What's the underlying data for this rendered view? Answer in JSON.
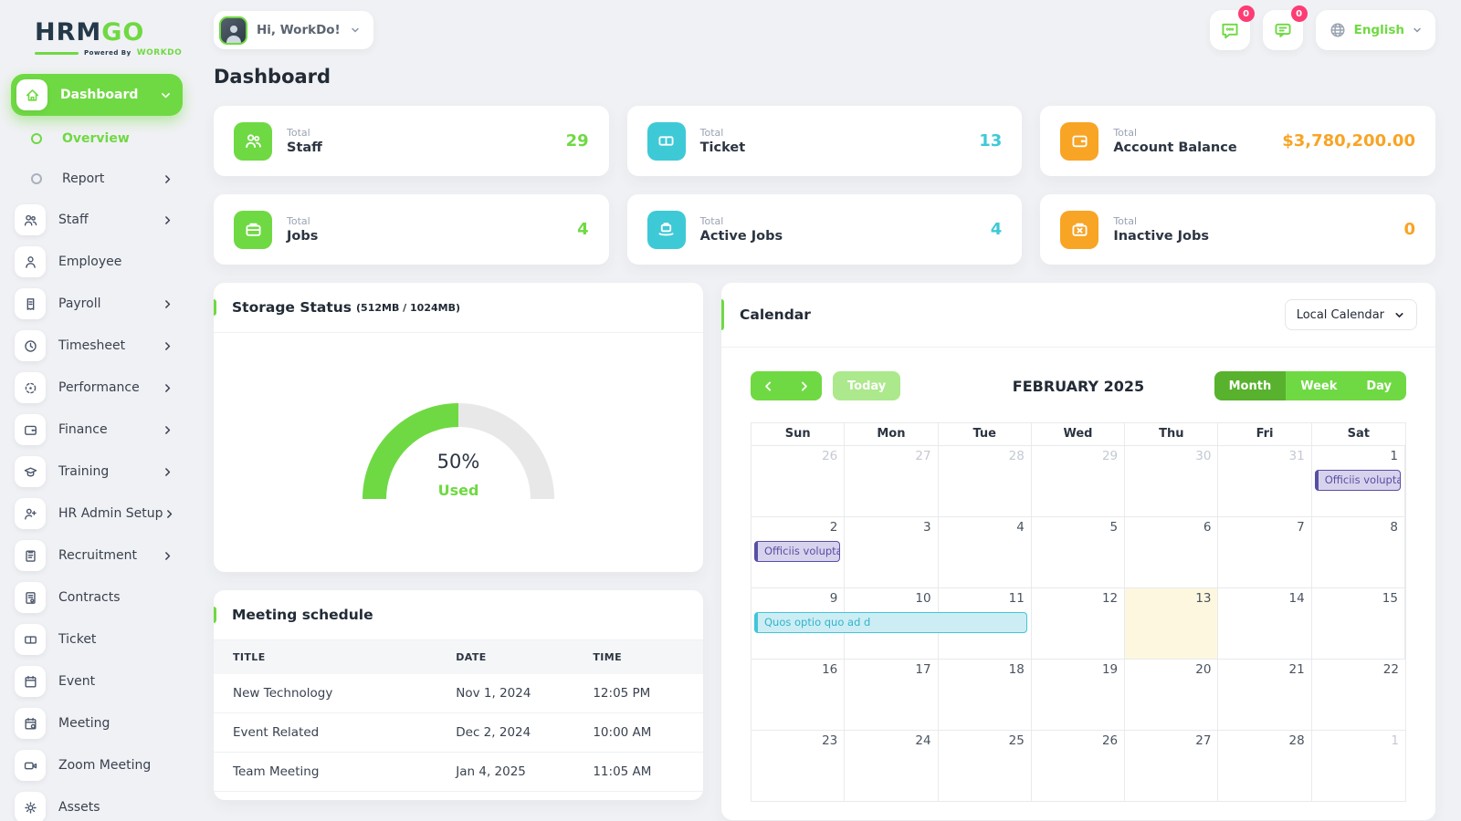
{
  "brand": {
    "name_primary": "HRM",
    "name_secondary": "GO",
    "powered_prefix": "Powered By",
    "powered_brand": "WORKDO"
  },
  "header": {
    "greeting": "Hi, WorkDo!",
    "language": "English",
    "badges": [
      {
        "icon": "chat-icon",
        "count": "0"
      },
      {
        "icon": "message-icon",
        "count": "0"
      }
    ]
  },
  "page": {
    "title": "Dashboard"
  },
  "sidebar": {
    "items": [
      {
        "label": "Dashboard",
        "icon": "home",
        "type": "root-active",
        "chevron": "down"
      },
      {
        "label": "Overview",
        "icon": "dot",
        "type": "sub",
        "active": true
      },
      {
        "label": "Report",
        "icon": "dot",
        "type": "sub",
        "chevron": "right"
      },
      {
        "label": "Staff",
        "icon": "users",
        "chevron": "right"
      },
      {
        "label": "Employee",
        "icon": "user"
      },
      {
        "label": "Payroll",
        "icon": "receipt",
        "chevron": "right"
      },
      {
        "label": "Timesheet",
        "icon": "clock",
        "chevron": "right"
      },
      {
        "label": "Performance",
        "icon": "target",
        "chevron": "right"
      },
      {
        "label": "Finance",
        "icon": "wallet",
        "chevron": "right"
      },
      {
        "label": "Training",
        "icon": "graduation",
        "chevron": "right"
      },
      {
        "label": "HR Admin Setup",
        "icon": "user-plus",
        "chevron": "right"
      },
      {
        "label": "Recruitment",
        "icon": "clipboard",
        "chevron": "right"
      },
      {
        "label": "Contracts",
        "icon": "contract"
      },
      {
        "label": "Ticket",
        "icon": "ticket"
      },
      {
        "label": "Event",
        "icon": "calendar"
      },
      {
        "label": "Meeting",
        "icon": "calendar-x"
      },
      {
        "label": "Zoom Meeting",
        "icon": "video"
      },
      {
        "label": "Assets",
        "icon": "gear"
      }
    ]
  },
  "stats": [
    {
      "label_top": "Total",
      "label": "Staff",
      "value": "29",
      "color": "#6fd943",
      "icon": "users"
    },
    {
      "label_top": "Total",
      "label": "Ticket",
      "value": "13",
      "color": "#3ec9d6",
      "icon": "ticket"
    },
    {
      "label_top": "Total",
      "label": "Account Balance",
      "value": "$3,780,200.00",
      "color": "#f8a425",
      "icon": "wallet"
    },
    {
      "label_top": "Total",
      "label": "Jobs",
      "value": "4",
      "color": "#6fd943",
      "icon": "briefcase"
    },
    {
      "label_top": "Total",
      "label": "Active Jobs",
      "value": "4",
      "color": "#3ec9d6",
      "icon": "briefcase-hand"
    },
    {
      "label_top": "Total",
      "label": "Inactive Jobs",
      "value": "0",
      "color": "#f8a425",
      "icon": "briefcase-x"
    }
  ],
  "storage": {
    "title": "Storage Status",
    "subtitle": "(512MB / 1024MB)",
    "percent_used": 50,
    "percent_label": "50%",
    "used_label": "Used",
    "used_color": "#6fd943",
    "track_color": "#e8e8e8"
  },
  "meetings": {
    "title": "Meeting schedule",
    "columns": [
      "TITLE",
      "DATE",
      "TIME"
    ],
    "rows": [
      [
        "New Technology",
        "Nov 1, 2024",
        "12:05 PM"
      ],
      [
        "Event Related",
        "Dec 2, 2024",
        "10:00 AM"
      ],
      [
        "Team Meeting",
        "Jan 4, 2025",
        "11:05 AM"
      ]
    ]
  },
  "calendar": {
    "title": "Calendar",
    "source_select": "Local Calendar",
    "today_label": "Today",
    "month_title": "FEBRUARY 2025",
    "views": [
      "Month",
      "Week",
      "Day"
    ],
    "active_view": "Month",
    "day_headers": [
      "Sun",
      "Mon",
      "Tue",
      "Wed",
      "Thu",
      "Fri",
      "Sat"
    ],
    "weeks": [
      [
        {
          "n": "26",
          "muted": true
        },
        {
          "n": "27",
          "muted": true
        },
        {
          "n": "28",
          "muted": true
        },
        {
          "n": "29",
          "muted": true
        },
        {
          "n": "30",
          "muted": true
        },
        {
          "n": "31",
          "muted": true
        },
        {
          "n": "1"
        }
      ],
      [
        {
          "n": "2"
        },
        {
          "n": "3"
        },
        {
          "n": "4"
        },
        {
          "n": "5"
        },
        {
          "n": "6"
        },
        {
          "n": "7"
        },
        {
          "n": "8"
        }
      ],
      [
        {
          "n": "9"
        },
        {
          "n": "10"
        },
        {
          "n": "11"
        },
        {
          "n": "12"
        },
        {
          "n": "13"
        },
        {
          "n": "14"
        },
        {
          "n": "15"
        }
      ],
      [
        {
          "n": "16"
        },
        {
          "n": "17"
        },
        {
          "n": "18"
        },
        {
          "n": "19"
        },
        {
          "n": "20"
        },
        {
          "n": "21"
        },
        {
          "n": "22"
        }
      ],
      [
        {
          "n": "23"
        },
        {
          "n": "24"
        },
        {
          "n": "25"
        },
        {
          "n": "26"
        },
        {
          "n": "27"
        },
        {
          "n": "28"
        },
        {
          "n": "1",
          "muted": true
        }
      ]
    ],
    "today": {
      "week": 2,
      "col": 4
    },
    "events": [
      {
        "title": "Officiis voluptas c",
        "week": 0,
        "col": 6,
        "span": 1,
        "theme": "purple"
      },
      {
        "title": "Officiis voluptas c",
        "week": 1,
        "col": 0,
        "span": 1,
        "theme": "purple"
      },
      {
        "title": "Quos optio quo ad d",
        "week": 2,
        "col": 0,
        "span": 3,
        "theme": "cyan"
      }
    ]
  }
}
